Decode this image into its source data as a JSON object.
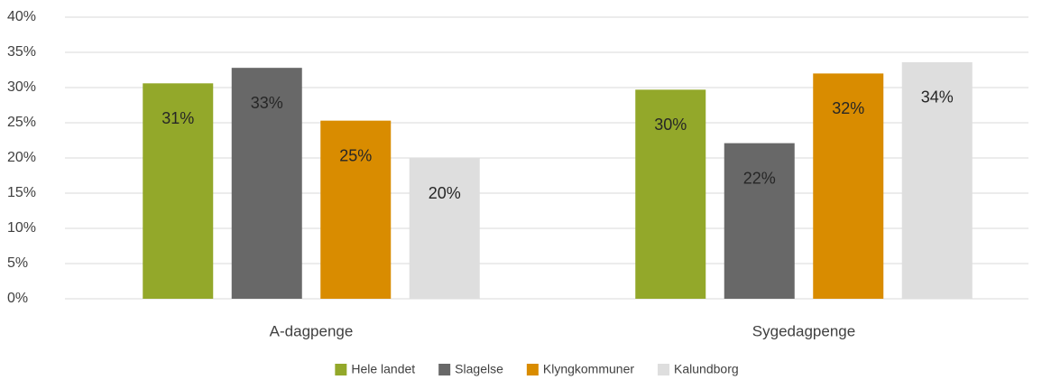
{
  "chart_data": {
    "type": "bar",
    "categories": [
      "A-dagpenge",
      "Sygedagpenge"
    ],
    "series": [
      {
        "name": "Hele landet",
        "color": "#93a82a",
        "values": [
          30.6,
          29.7
        ],
        "value_labels": [
          "31%",
          "30%"
        ]
      },
      {
        "name": "Slagelse",
        "color": "#686868",
        "values": [
          32.8,
          22.1
        ],
        "value_labels": [
          "33%",
          "22%"
        ]
      },
      {
        "name": "Klyngkommuner",
        "color": "#d98c00",
        "values": [
          25.3,
          32.0
        ],
        "value_labels": [
          "25%",
          "32%"
        ]
      },
      {
        "name": "Kalundborg",
        "color": "#dedede",
        "values": [
          20.0,
          33.6
        ],
        "value_labels": [
          "20%",
          "34%"
        ]
      }
    ],
    "ylim": [
      0,
      40
    ],
    "yticks": [
      {
        "value": 0,
        "label": "0%"
      },
      {
        "value": 5,
        "label": "5%"
      },
      {
        "value": 10,
        "label": "10%"
      },
      {
        "value": 15,
        "label": "15%"
      },
      {
        "value": 20,
        "label": "20%"
      },
      {
        "value": 25,
        "label": "25%"
      },
      {
        "value": 30,
        "label": "30%"
      },
      {
        "value": 35,
        "label": "35%"
      },
      {
        "value": 40,
        "label": "40%"
      }
    ],
    "grid": true,
    "legend": "bottom"
  }
}
